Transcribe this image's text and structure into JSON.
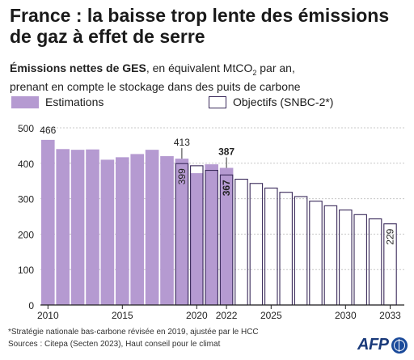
{
  "title": "France : la baisse trop lente des émissions de gaz à effet de serre",
  "subtitle_bold": "Émissions nettes de GES",
  "subtitle_rest_1": ", en équivalent MtCO",
  "subtitle_sub": "2",
  "subtitle_rest_2": " par an,",
  "subtitle_line2": "prenant en compte le stockage dans des puits de carbone",
  "footnote": "*Stratégie nationale bas-carbone révisée en 2019, ajustée par le HCC",
  "sources": "Sources : Citepa (Secten 2023), Haut conseil pour le climat",
  "logo_text": "AFP",
  "colors": {
    "estimations": "#b59ad1",
    "objectives_stroke": "#3a2a5a",
    "grid": "#c8c8c8"
  },
  "chart_data": {
    "type": "bar",
    "title": "France : la baisse trop lente des émissions de gaz à effet de serre",
    "ylim": [
      0,
      500
    ],
    "yticks": [
      0,
      100,
      200,
      300,
      400,
      500
    ],
    "grid": true,
    "legend_position": "top",
    "x_tick_labels": [
      "2010",
      "2015",
      "2020",
      "2022",
      "2025",
      "2030",
      "2033"
    ],
    "series": [
      {
        "name": "Estimations",
        "years": [
          2010,
          2011,
          2012,
          2013,
          2014,
          2015,
          2016,
          2017,
          2018,
          2019,
          2020,
          2021,
          2022
        ],
        "values": [
          466,
          440,
          438,
          439,
          410,
          417,
          426,
          438,
          420,
          413,
          372,
          397,
          387
        ]
      },
      {
        "name": "Objectifs (SNBC-2*)",
        "years": [
          2019,
          2020,
          2021,
          2022,
          2023,
          2024,
          2025,
          2026,
          2027,
          2028,
          2029,
          2030,
          2031,
          2032,
          2033
        ],
        "values": [
          399,
          393,
          380,
          367,
          355,
          343,
          330,
          318,
          306,
          293,
          280,
          268,
          255,
          243,
          229
        ]
      }
    ],
    "annotations": [
      {
        "year": 2010,
        "series": "Estimations",
        "label": "466"
      },
      {
        "year": 2019,
        "series": "Estimations",
        "label": "413"
      },
      {
        "year": 2022,
        "series": "Estimations",
        "label": "387",
        "bold": true
      },
      {
        "year": 2019,
        "series": "Objectifs (SNBC-2*)",
        "label": "399",
        "vertical": true
      },
      {
        "year": 2022,
        "series": "Objectifs (SNBC-2*)",
        "label": "367",
        "vertical": true,
        "bold": true
      },
      {
        "year": 2033,
        "series": "Objectifs (SNBC-2*)",
        "label": "229",
        "vertical": true
      }
    ]
  }
}
